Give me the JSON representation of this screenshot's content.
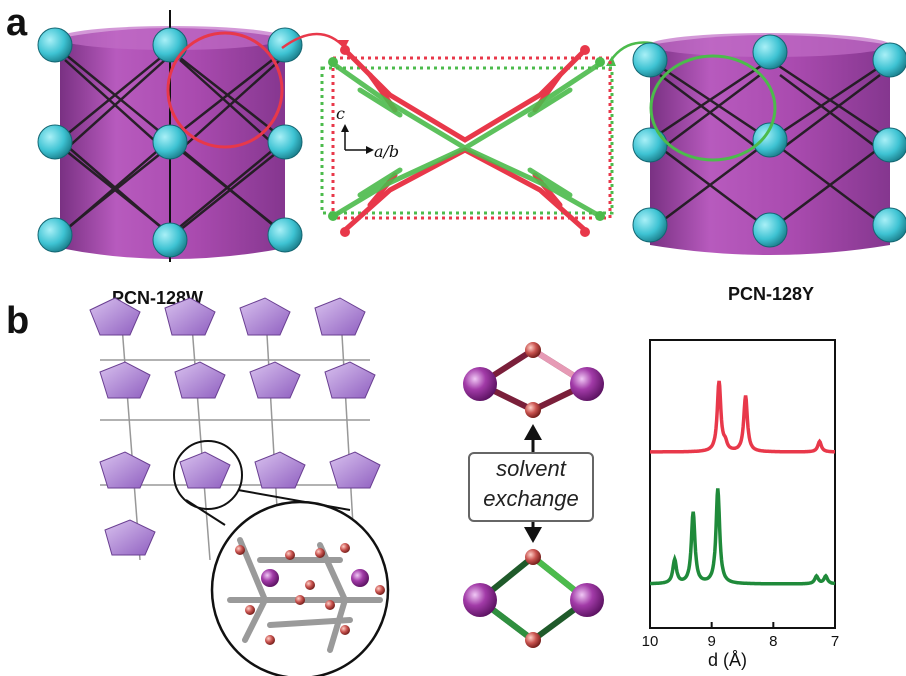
{
  "figure": {
    "panel_a_label": "a",
    "panel_b_label": "b",
    "left_structure_label": "PCN-128W",
    "right_structure_label": "PCN-128Y",
    "axis_c": "c",
    "axis_ab": "a/b",
    "exchange_line1": "solvent",
    "exchange_line2": "exchange"
  },
  "colors": {
    "cylinder": "#a23ba8",
    "cluster": "#3ec3d3",
    "red": "#e8384a",
    "green": "#4cbb4c",
    "dark_green": "#1f8a3a",
    "dark_red": "#7a1f3a",
    "pink": "#e69ab5",
    "purple_poly": "#b48cd6",
    "zr_atom": "#9b4fb5",
    "o_atom": "#c9534f"
  },
  "chart_data": {
    "type": "line",
    "xlabel": "d (Å)",
    "xlim": [
      10,
      7
    ],
    "x_ticks": [
      "10",
      "9",
      "8",
      "7"
    ],
    "series": [
      {
        "color": "#e8384a",
        "peaks": [
          {
            "d": 8.88,
            "intensity": 1.0
          },
          {
            "d": 8.78,
            "intensity": 0.1
          },
          {
            "d": 8.45,
            "intensity": 0.8
          },
          {
            "d": 7.25,
            "intensity": 0.15
          }
        ]
      },
      {
        "color": "#1f8a3a",
        "peaks": [
          {
            "d": 9.6,
            "intensity": 0.25
          },
          {
            "d": 9.3,
            "intensity": 0.75
          },
          {
            "d": 8.9,
            "intensity": 1.0
          },
          {
            "d": 7.3,
            "intensity": 0.08
          },
          {
            "d": 7.15,
            "intensity": 0.08
          }
        ]
      }
    ]
  }
}
